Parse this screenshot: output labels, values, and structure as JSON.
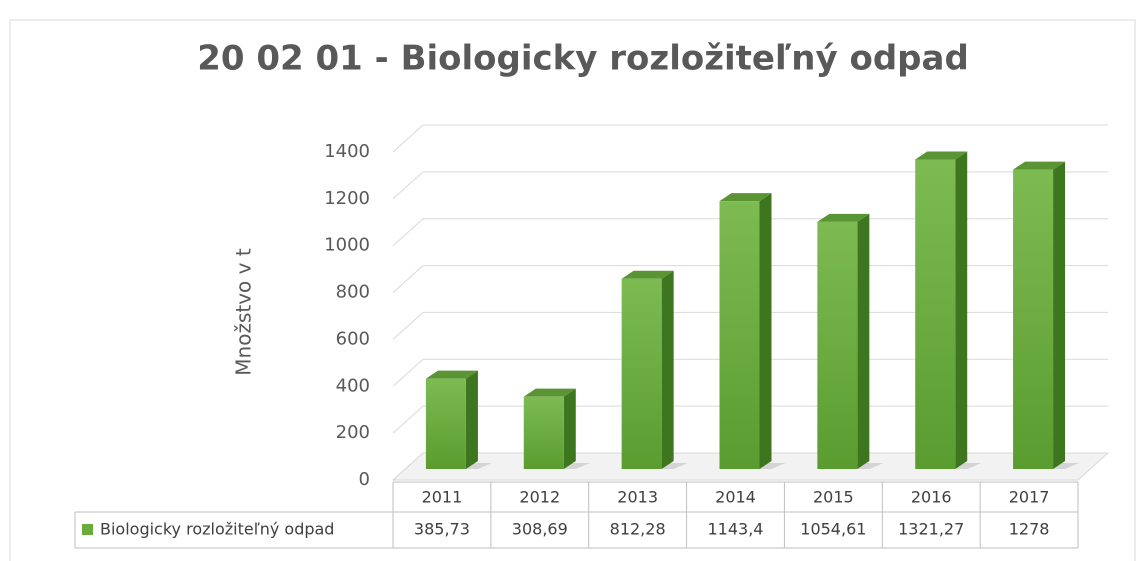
{
  "chart_data": {
    "type": "bar3d",
    "title": "20 02 01 - Biologicky rozložiteľný odpad",
    "y_label": "Množstvo v t",
    "categories": [
      "2011",
      "2012",
      "2013",
      "2014",
      "2015",
      "2016",
      "2017"
    ],
    "series": [
      {
        "name": "Biologicky rozložiteľný odpad",
        "color": "#6aab3e",
        "values": [
          385.73,
          308.69,
          812.28,
          1143.4,
          1054.61,
          1321.27,
          1278
        ],
        "value_labels": [
          "385,73",
          "308,69",
          "812,28",
          "1143,4",
          "1054,61",
          "1321,27",
          "1278"
        ]
      }
    ],
    "ylim": [
      0,
      1400
    ],
    "yticks": [
      0,
      200,
      400,
      600,
      800,
      1000,
      1200,
      1400
    ],
    "grid": true,
    "data_table": true
  }
}
